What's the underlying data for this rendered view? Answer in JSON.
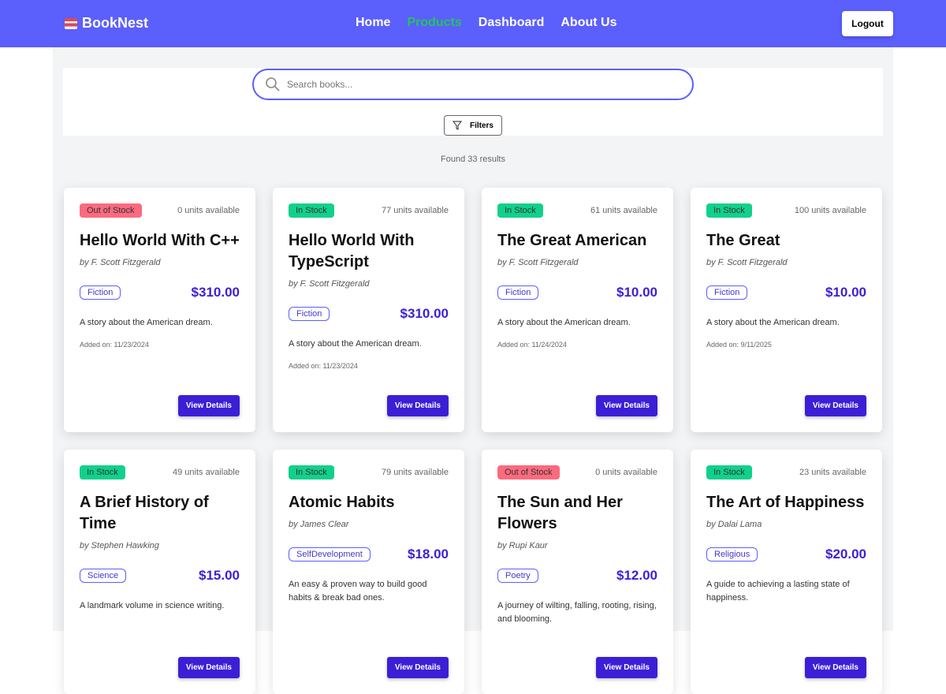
{
  "brand": {
    "name": "BookNest",
    "icon": "books-icon"
  },
  "nav": [
    {
      "label": "Home",
      "active": false
    },
    {
      "label": "Products",
      "active": true
    },
    {
      "label": "Dashboard",
      "active": false
    },
    {
      "label": "About Us",
      "active": false
    }
  ],
  "logout_label": "Logout",
  "search": {
    "placeholder": "Search books...",
    "value": ""
  },
  "filters_label": "Filters",
  "results": "Found 33 results",
  "colors": {
    "header": "#5b5ffc",
    "active_nav": "#22c55e",
    "in_stock": "#10d18c",
    "out_of_stock": "#fb6a7e",
    "price": "#3b1fd6"
  },
  "books": [
    {
      "status": "Out of Stock",
      "units": "0 units available",
      "title": "Hello World With C++",
      "author": "by F. Scott Fitzgerald",
      "genre": "Fiction",
      "price": "$310.00",
      "desc": "A story about the American dream.",
      "date": "Added on: 11/23/2024",
      "button": "View Details"
    },
    {
      "status": "In Stock",
      "units": "77 units available",
      "title": "Hello World With TypeScript",
      "author": "by F. Scott Fitzgerald",
      "genre": "Fiction",
      "price": "$310.00",
      "desc": "A story about the American dream.",
      "date": "Added on: 11/23/2024",
      "button": "View Details"
    },
    {
      "status": "In Stock",
      "units": "61 units available",
      "title": "The Great American",
      "author": "by F. Scott Fitzgerald",
      "genre": "Fiction",
      "price": "$10.00",
      "desc": "A story about the American dream.",
      "date": "Added on: 11/24/2024",
      "button": "View Details"
    },
    {
      "status": "In Stock",
      "units": "100 units available",
      "title": "The Great",
      "author": "by F. Scott Fitzgerald",
      "genre": "Fiction",
      "price": "$10.00",
      "desc": "A story about the American dream.",
      "date": "Added on: 9/11/2025",
      "button": "View Details"
    },
    {
      "status": "In Stock",
      "units": "49 units available",
      "title": "A Brief History of Time",
      "author": "by Stephen Hawking",
      "genre": "Science",
      "price": "$15.00",
      "desc": "A landmark volume in science writing.",
      "date": "",
      "button": "View Details"
    },
    {
      "status": "In Stock",
      "units": "79 units available",
      "title": "Atomic Habits",
      "author": "by James Clear",
      "genre": "SelfDevelopment",
      "price": "$18.00",
      "desc": "An easy & proven way to build good habits & break bad ones.",
      "date": "",
      "button": "View Details"
    },
    {
      "status": "Out of Stock",
      "units": "0 units available",
      "title": "The Sun and Her Flowers",
      "author": "by Rupi Kaur",
      "genre": "Poetry",
      "price": "$12.00",
      "desc": "A journey of wilting, falling, rooting, rising, and blooming.",
      "date": "",
      "button": "View Details"
    },
    {
      "status": "In Stock",
      "units": "23 units available",
      "title": "The Art of Happiness",
      "author": "by Dalai Lama",
      "genre": "Religious",
      "price": "$20.00",
      "desc": "A guide to achieving a lasting state of happiness.",
      "date": "",
      "button": "View Details"
    }
  ]
}
